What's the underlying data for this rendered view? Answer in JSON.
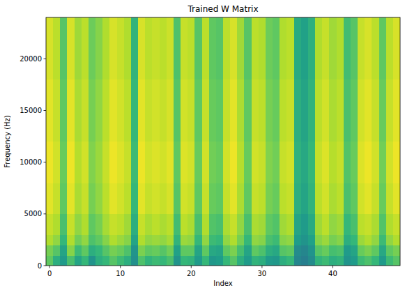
{
  "chart_data": {
    "type": "heatmap",
    "title": "Trained W Matrix",
    "x_label": "Index",
    "y_label": "Frequency (Hz)",
    "x": [
      0,
      1,
      2,
      3,
      4,
      5,
      6,
      7,
      8,
      9,
      10,
      11,
      12,
      13,
      14,
      15,
      16,
      17,
      18,
      19,
      20,
      21,
      22,
      23,
      24,
      25,
      26,
      27,
      28,
      29,
      30,
      31,
      32,
      33,
      34,
      35,
      36,
      37,
      38,
      39,
      40,
      41,
      42,
      43,
      44,
      45,
      46,
      47,
      48,
      49
    ],
    "y_edges": [
      0,
      1000,
      2000,
      3000,
      5000,
      8000,
      12000,
      18000,
      24000
    ],
    "xlim": [
      -0.5,
      49.5
    ],
    "xticks": [
      0,
      10,
      20,
      30,
      40
    ],
    "ylim": [
      0,
      24000
    ],
    "yticks": [
      0,
      5000,
      10000,
      15000,
      20000
    ],
    "color_range": [
      -0.2,
      1
    ],
    "cells": [
      [
        0.7,
        0.55,
        0.45,
        0.65,
        0.5,
        0.6,
        0.42,
        0.55,
        0.6,
        0.68,
        0.62,
        0.55,
        0.4,
        0.66,
        0.58,
        0.62,
        0.6,
        0.65,
        0.42,
        0.6,
        0.58,
        0.45,
        0.6,
        0.44,
        0.46,
        0.6,
        0.68,
        0.55,
        0.45,
        0.58,
        0.55,
        0.45,
        0.44,
        0.55,
        0.6,
        0.35,
        0.32,
        0.38,
        0.58,
        0.62,
        0.55,
        0.58,
        0.42,
        0.45,
        0.62,
        0.66,
        0.6,
        0.45,
        0.62,
        0.68
      ],
      [
        0.75,
        0.68,
        0.5,
        0.78,
        0.62,
        0.7,
        0.55,
        0.6,
        0.68,
        0.75,
        0.72,
        0.66,
        0.42,
        0.76,
        0.7,
        0.72,
        0.68,
        0.74,
        0.48,
        0.7,
        0.7,
        0.5,
        0.7,
        0.52,
        0.5,
        0.7,
        0.76,
        0.64,
        0.5,
        0.7,
        0.66,
        0.55,
        0.52,
        0.68,
        0.7,
        0.38,
        0.35,
        0.42,
        0.68,
        0.72,
        0.64,
        0.66,
        0.45,
        0.5,
        0.72,
        0.76,
        0.7,
        0.52,
        0.7,
        0.75
      ],
      [
        0.86,
        0.8,
        0.6,
        0.86,
        0.74,
        0.8,
        0.66,
        0.7,
        0.78,
        0.86,
        0.82,
        0.78,
        0.5,
        0.86,
        0.8,
        0.82,
        0.8,
        0.84,
        0.58,
        0.82,
        0.8,
        0.6,
        0.8,
        0.62,
        0.6,
        0.8,
        0.86,
        0.75,
        0.6,
        0.8,
        0.78,
        0.65,
        0.62,
        0.78,
        0.8,
        0.46,
        0.42,
        0.48,
        0.78,
        0.82,
        0.75,
        0.78,
        0.55,
        0.6,
        0.82,
        0.86,
        0.8,
        0.62,
        0.8,
        0.86
      ],
      [
        0.9,
        0.86,
        0.65,
        0.9,
        0.8,
        0.86,
        0.7,
        0.75,
        0.84,
        0.9,
        0.88,
        0.83,
        0.55,
        0.9,
        0.85,
        0.88,
        0.85,
        0.88,
        0.63,
        0.88,
        0.85,
        0.65,
        0.86,
        0.67,
        0.65,
        0.85,
        0.9,
        0.8,
        0.65,
        0.85,
        0.83,
        0.7,
        0.67,
        0.83,
        0.86,
        0.5,
        0.45,
        0.53,
        0.83,
        0.88,
        0.8,
        0.83,
        0.6,
        0.65,
        0.88,
        0.9,
        0.85,
        0.67,
        0.86,
        0.9
      ],
      [
        0.95,
        0.9,
        0.7,
        0.95,
        0.85,
        0.9,
        0.75,
        0.8,
        0.88,
        0.95,
        0.92,
        0.88,
        0.6,
        0.95,
        0.9,
        0.92,
        0.9,
        0.93,
        0.68,
        0.92,
        0.9,
        0.7,
        0.9,
        0.72,
        0.7,
        0.9,
        0.95,
        0.85,
        0.7,
        0.9,
        0.88,
        0.75,
        0.72,
        0.88,
        0.9,
        0.55,
        0.5,
        0.58,
        0.88,
        0.92,
        0.85,
        0.88,
        0.65,
        0.7,
        0.92,
        0.95,
        0.9,
        0.72,
        0.9,
        0.95
      ],
      [
        0.97,
        0.92,
        0.72,
        0.97,
        0.87,
        0.92,
        0.77,
        0.82,
        0.9,
        0.97,
        0.94,
        0.9,
        0.62,
        0.97,
        0.92,
        0.94,
        0.92,
        0.95,
        0.7,
        0.94,
        0.92,
        0.72,
        0.92,
        0.74,
        0.72,
        0.92,
        0.97,
        0.87,
        0.72,
        0.92,
        0.9,
        0.77,
        0.74,
        0.9,
        0.92,
        0.57,
        0.52,
        0.6,
        0.9,
        0.94,
        0.87,
        0.9,
        0.67,
        0.72,
        0.94,
        0.97,
        0.92,
        0.74,
        0.92,
        0.97
      ],
      [
        0.95,
        0.9,
        0.7,
        0.95,
        0.85,
        0.9,
        0.75,
        0.8,
        0.88,
        0.95,
        0.92,
        0.88,
        0.6,
        0.95,
        0.9,
        0.92,
        0.9,
        0.93,
        0.68,
        0.92,
        0.9,
        0.7,
        0.9,
        0.72,
        0.7,
        0.9,
        0.95,
        0.85,
        0.7,
        0.9,
        0.88,
        0.75,
        0.72,
        0.88,
        0.9,
        0.55,
        0.5,
        0.58,
        0.88,
        0.92,
        0.85,
        0.88,
        0.65,
        0.7,
        0.92,
        0.95,
        0.9,
        0.72,
        0.9,
        0.95
      ],
      [
        0.93,
        0.88,
        0.68,
        0.93,
        0.83,
        0.88,
        0.73,
        0.78,
        0.86,
        0.93,
        0.9,
        0.86,
        0.58,
        0.93,
        0.88,
        0.9,
        0.88,
        0.91,
        0.66,
        0.9,
        0.88,
        0.68,
        0.88,
        0.7,
        0.68,
        0.88,
        0.93,
        0.83,
        0.68,
        0.88,
        0.86,
        0.73,
        0.7,
        0.86,
        0.88,
        0.53,
        0.48,
        0.56,
        0.86,
        0.9,
        0.83,
        0.86,
        0.63,
        0.68,
        0.9,
        0.93,
        0.88,
        0.7,
        0.88,
        0.93
      ]
    ]
  }
}
